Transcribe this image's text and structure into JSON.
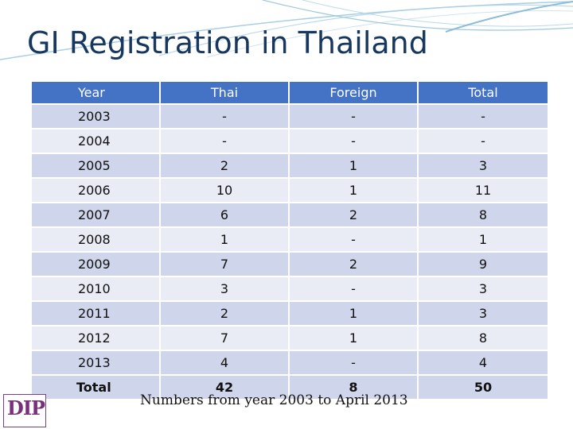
{
  "title": "GI Registration in Thailand",
  "table": {
    "headers": [
      "Year",
      "Thai",
      "Foreign",
      "Total"
    ],
    "rows": [
      [
        "2003",
        "-",
        "-",
        "-"
      ],
      [
        "2004",
        "-",
        "-",
        "-"
      ],
      [
        "2005",
        "2",
        "1",
        "3"
      ],
      [
        "2006",
        "10",
        "1",
        "11"
      ],
      [
        "2007",
        "6",
        "2",
        "8"
      ],
      [
        "2008",
        "1",
        "-",
        "1"
      ],
      [
        "2009",
        "7",
        "2",
        "9"
      ],
      [
        "2010",
        "3",
        "-",
        "3"
      ],
      [
        "2011",
        "2",
        "1",
        "3"
      ],
      [
        "2012",
        "7",
        "1",
        "8"
      ],
      [
        "2013",
        "4",
        "-",
        "4"
      ]
    ],
    "total": [
      "Total",
      "42",
      "8",
      "50"
    ]
  },
  "note": "Numbers from year 2003 to April 2013",
  "logo": {
    "icon": "dip-logo-icon",
    "text": "DIP"
  },
  "colors": {
    "header": "#4472c4",
    "row_dark": "#cfd5ea",
    "row_light": "#e9ebf5",
    "title": "#17375e"
  }
}
